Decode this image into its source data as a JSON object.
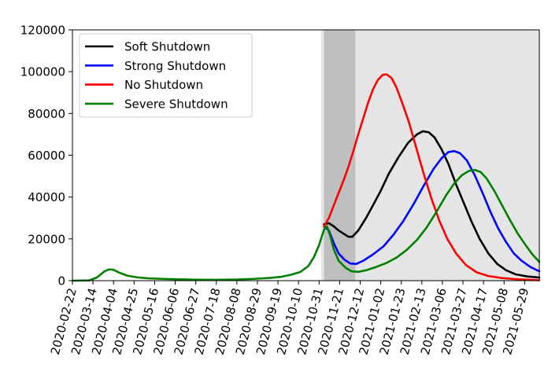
{
  "chart_data": {
    "type": "line",
    "title": "",
    "xlabel": "",
    "ylabel": "",
    "ylim": [
      0,
      120000
    ],
    "xlim": [
      "2020-02-22",
      "2021-06-13"
    ],
    "grid": false,
    "legend_position": "top-left",
    "yticks": [
      0,
      20000,
      40000,
      60000,
      80000,
      100000,
      120000
    ],
    "xticks": [
      "2020-02-22",
      "2020-03-14",
      "2020-04-04",
      "2020-04-25",
      "2020-05-16",
      "2020-06-06",
      "2020-06-27",
      "2020-07-18",
      "2020-08-08",
      "2020-08-29",
      "2020-09-19",
      "2020-10-10",
      "2020-10-31",
      "2020-11-21",
      "2020-12-12",
      "2021-01-02",
      "2021-01-23",
      "2021-02-13",
      "2021-03-06",
      "2021-03-27",
      "2021-04-17",
      "2021-05-08",
      "2021-05-29"
    ],
    "shaded_regions": [
      {
        "start": "2020-11-02",
        "end": "2021-06-13",
        "color": "#e5e5e5"
      },
      {
        "start": "2020-11-05",
        "end": "2020-12-07",
        "color": "#bfbfbf"
      }
    ],
    "series": [
      {
        "name": "Soft Shutdown",
        "color": "#000000",
        "points": [
          [
            "2020-11-05",
            27000
          ],
          [
            "2020-11-10",
            27500
          ],
          [
            "2020-11-15",
            26000
          ],
          [
            "2020-11-20",
            24000
          ],
          [
            "2020-11-25",
            22500
          ],
          [
            "2020-11-30",
            21000
          ],
          [
            "2020-12-04",
            21000
          ],
          [
            "2020-12-10",
            24000
          ],
          [
            "2020-12-18",
            30000
          ],
          [
            "2020-12-25",
            36000
          ],
          [
            "2021-01-02",
            43000
          ],
          [
            "2021-01-10",
            51000
          ],
          [
            "2021-01-20",
            59000
          ],
          [
            "2021-01-30",
            66000
          ],
          [
            "2021-02-08",
            70000
          ],
          [
            "2021-02-14",
            71500
          ],
          [
            "2021-02-20",
            71000
          ],
          [
            "2021-02-26",
            68500
          ],
          [
            "2021-03-05",
            63000
          ],
          [
            "2021-03-12",
            56000
          ],
          [
            "2021-03-20",
            46000
          ],
          [
            "2021-03-28",
            37000
          ],
          [
            "2021-04-05",
            28000
          ],
          [
            "2021-04-13",
            20000
          ],
          [
            "2021-04-22",
            13000
          ],
          [
            "2021-05-01",
            8000
          ],
          [
            "2021-05-10",
            5000
          ],
          [
            "2021-05-20",
            3000
          ],
          [
            "2021-06-01",
            2000
          ],
          [
            "2021-06-13",
            1500
          ]
        ]
      },
      {
        "name": "Strong Shutdown",
        "color": "#0000ff",
        "points": [
          [
            "2020-11-05",
            26000
          ],
          [
            "2020-11-10",
            24000
          ],
          [
            "2020-11-15",
            18000
          ],
          [
            "2020-11-20",
            13000
          ],
          [
            "2020-11-26",
            10000
          ],
          [
            "2020-12-02",
            8200
          ],
          [
            "2020-12-08",
            8000
          ],
          [
            "2020-12-15",
            9500
          ],
          [
            "2020-12-25",
            12500
          ],
          [
            "2021-01-05",
            16500
          ],
          [
            "2021-01-15",
            22000
          ],
          [
            "2021-01-25",
            28500
          ],
          [
            "2021-02-05",
            37000
          ],
          [
            "2021-02-15",
            45500
          ],
          [
            "2021-02-25",
            53500
          ],
          [
            "2021-03-05",
            58500
          ],
          [
            "2021-03-12",
            61500
          ],
          [
            "2021-03-18",
            62000
          ],
          [
            "2021-03-24",
            61000
          ],
          [
            "2021-03-31",
            57500
          ],
          [
            "2021-04-08",
            50500
          ],
          [
            "2021-04-16",
            42000
          ],
          [
            "2021-04-24",
            33000
          ],
          [
            "2021-05-02",
            25000
          ],
          [
            "2021-05-10",
            18500
          ],
          [
            "2021-05-18",
            13000
          ],
          [
            "2021-05-26",
            9500
          ],
          [
            "2021-06-04",
            6500
          ],
          [
            "2021-06-13",
            4500
          ]
        ]
      },
      {
        "name": "No Shutdown",
        "color": "#ff0000",
        "points": [
          [
            "2020-11-05",
            26000
          ],
          [
            "2020-11-10",
            30000
          ],
          [
            "2020-11-15",
            36000
          ],
          [
            "2020-11-20",
            42000
          ],
          [
            "2020-11-25",
            48000
          ],
          [
            "2020-11-30",
            54500
          ],
          [
            "2020-12-05",
            62000
          ],
          [
            "2020-12-10",
            70000
          ],
          [
            "2020-12-15",
            77500
          ],
          [
            "2020-12-20",
            85000
          ],
          [
            "2020-12-25",
            91500
          ],
          [
            "2020-12-30",
            96000
          ],
          [
            "2021-01-04",
            98500
          ],
          [
            "2021-01-08",
            98700
          ],
          [
            "2021-01-13",
            97000
          ],
          [
            "2021-01-18",
            92500
          ],
          [
            "2021-01-24",
            85000
          ],
          [
            "2021-01-31",
            75500
          ],
          [
            "2021-02-07",
            64000
          ],
          [
            "2021-02-15",
            51000
          ],
          [
            "2021-02-23",
            39000
          ],
          [
            "2021-03-03",
            28500
          ],
          [
            "2021-03-11",
            20000
          ],
          [
            "2021-03-20",
            13000
          ],
          [
            "2021-03-30",
            7500
          ],
          [
            "2021-04-10",
            4000
          ],
          [
            "2021-04-22",
            2200
          ],
          [
            "2021-05-05",
            1300
          ],
          [
            "2021-05-20",
            700
          ],
          [
            "2021-06-13",
            200
          ]
        ]
      },
      {
        "name": "Severe Shutdown",
        "color": "#008000",
        "points": [
          [
            "2020-02-22",
            0
          ],
          [
            "2020-03-10",
            100
          ],
          [
            "2020-03-18",
            1500
          ],
          [
            "2020-03-25",
            4200
          ],
          [
            "2020-03-30",
            5400
          ],
          [
            "2020-04-04",
            5200
          ],
          [
            "2020-04-10",
            3800
          ],
          [
            "2020-04-18",
            2400
          ],
          [
            "2020-04-28",
            1600
          ],
          [
            "2020-05-10",
            1100
          ],
          [
            "2020-05-25",
            850
          ],
          [
            "2020-06-10",
            650
          ],
          [
            "2020-06-27",
            450
          ],
          [
            "2020-07-18",
            420
          ],
          [
            "2020-08-08",
            550
          ],
          [
            "2020-08-25",
            850
          ],
          [
            "2020-09-10",
            1300
          ],
          [
            "2020-09-22",
            1800
          ],
          [
            "2020-10-03",
            2900
          ],
          [
            "2020-10-12",
            4200
          ],
          [
            "2020-10-20",
            7000
          ],
          [
            "2020-10-26",
            11500
          ],
          [
            "2020-10-31",
            17000
          ],
          [
            "2020-11-03",
            21500
          ],
          [
            "2020-11-06",
            25500
          ],
          [
            "2020-11-08",
            26000
          ],
          [
            "2020-11-11",
            22000
          ],
          [
            "2020-11-15",
            15000
          ],
          [
            "2020-11-20",
            9500
          ],
          [
            "2020-11-27",
            6200
          ],
          [
            "2020-12-03",
            4500
          ],
          [
            "2020-12-10",
            4200
          ],
          [
            "2020-12-18",
            5000
          ],
          [
            "2020-12-28",
            6500
          ],
          [
            "2021-01-08",
            8500
          ],
          [
            "2021-01-18",
            11000
          ],
          [
            "2021-01-28",
            14500
          ],
          [
            "2021-02-08",
            19500
          ],
          [
            "2021-02-18",
            25500
          ],
          [
            "2021-02-28",
            33000
          ],
          [
            "2021-03-10",
            41000
          ],
          [
            "2021-03-18",
            46500
          ],
          [
            "2021-03-26",
            50500
          ],
          [
            "2021-04-02",
            52500
          ],
          [
            "2021-04-08",
            53000
          ],
          [
            "2021-04-14",
            52000
          ],
          [
            "2021-04-20",
            49000
          ],
          [
            "2021-04-28",
            43000
          ],
          [
            "2021-05-06",
            36000
          ],
          [
            "2021-05-14",
            29000
          ],
          [
            "2021-05-22",
            22500
          ],
          [
            "2021-05-30",
            17000
          ],
          [
            "2021-06-06",
            12500
          ],
          [
            "2021-06-13",
            9000
          ]
        ]
      }
    ]
  }
}
